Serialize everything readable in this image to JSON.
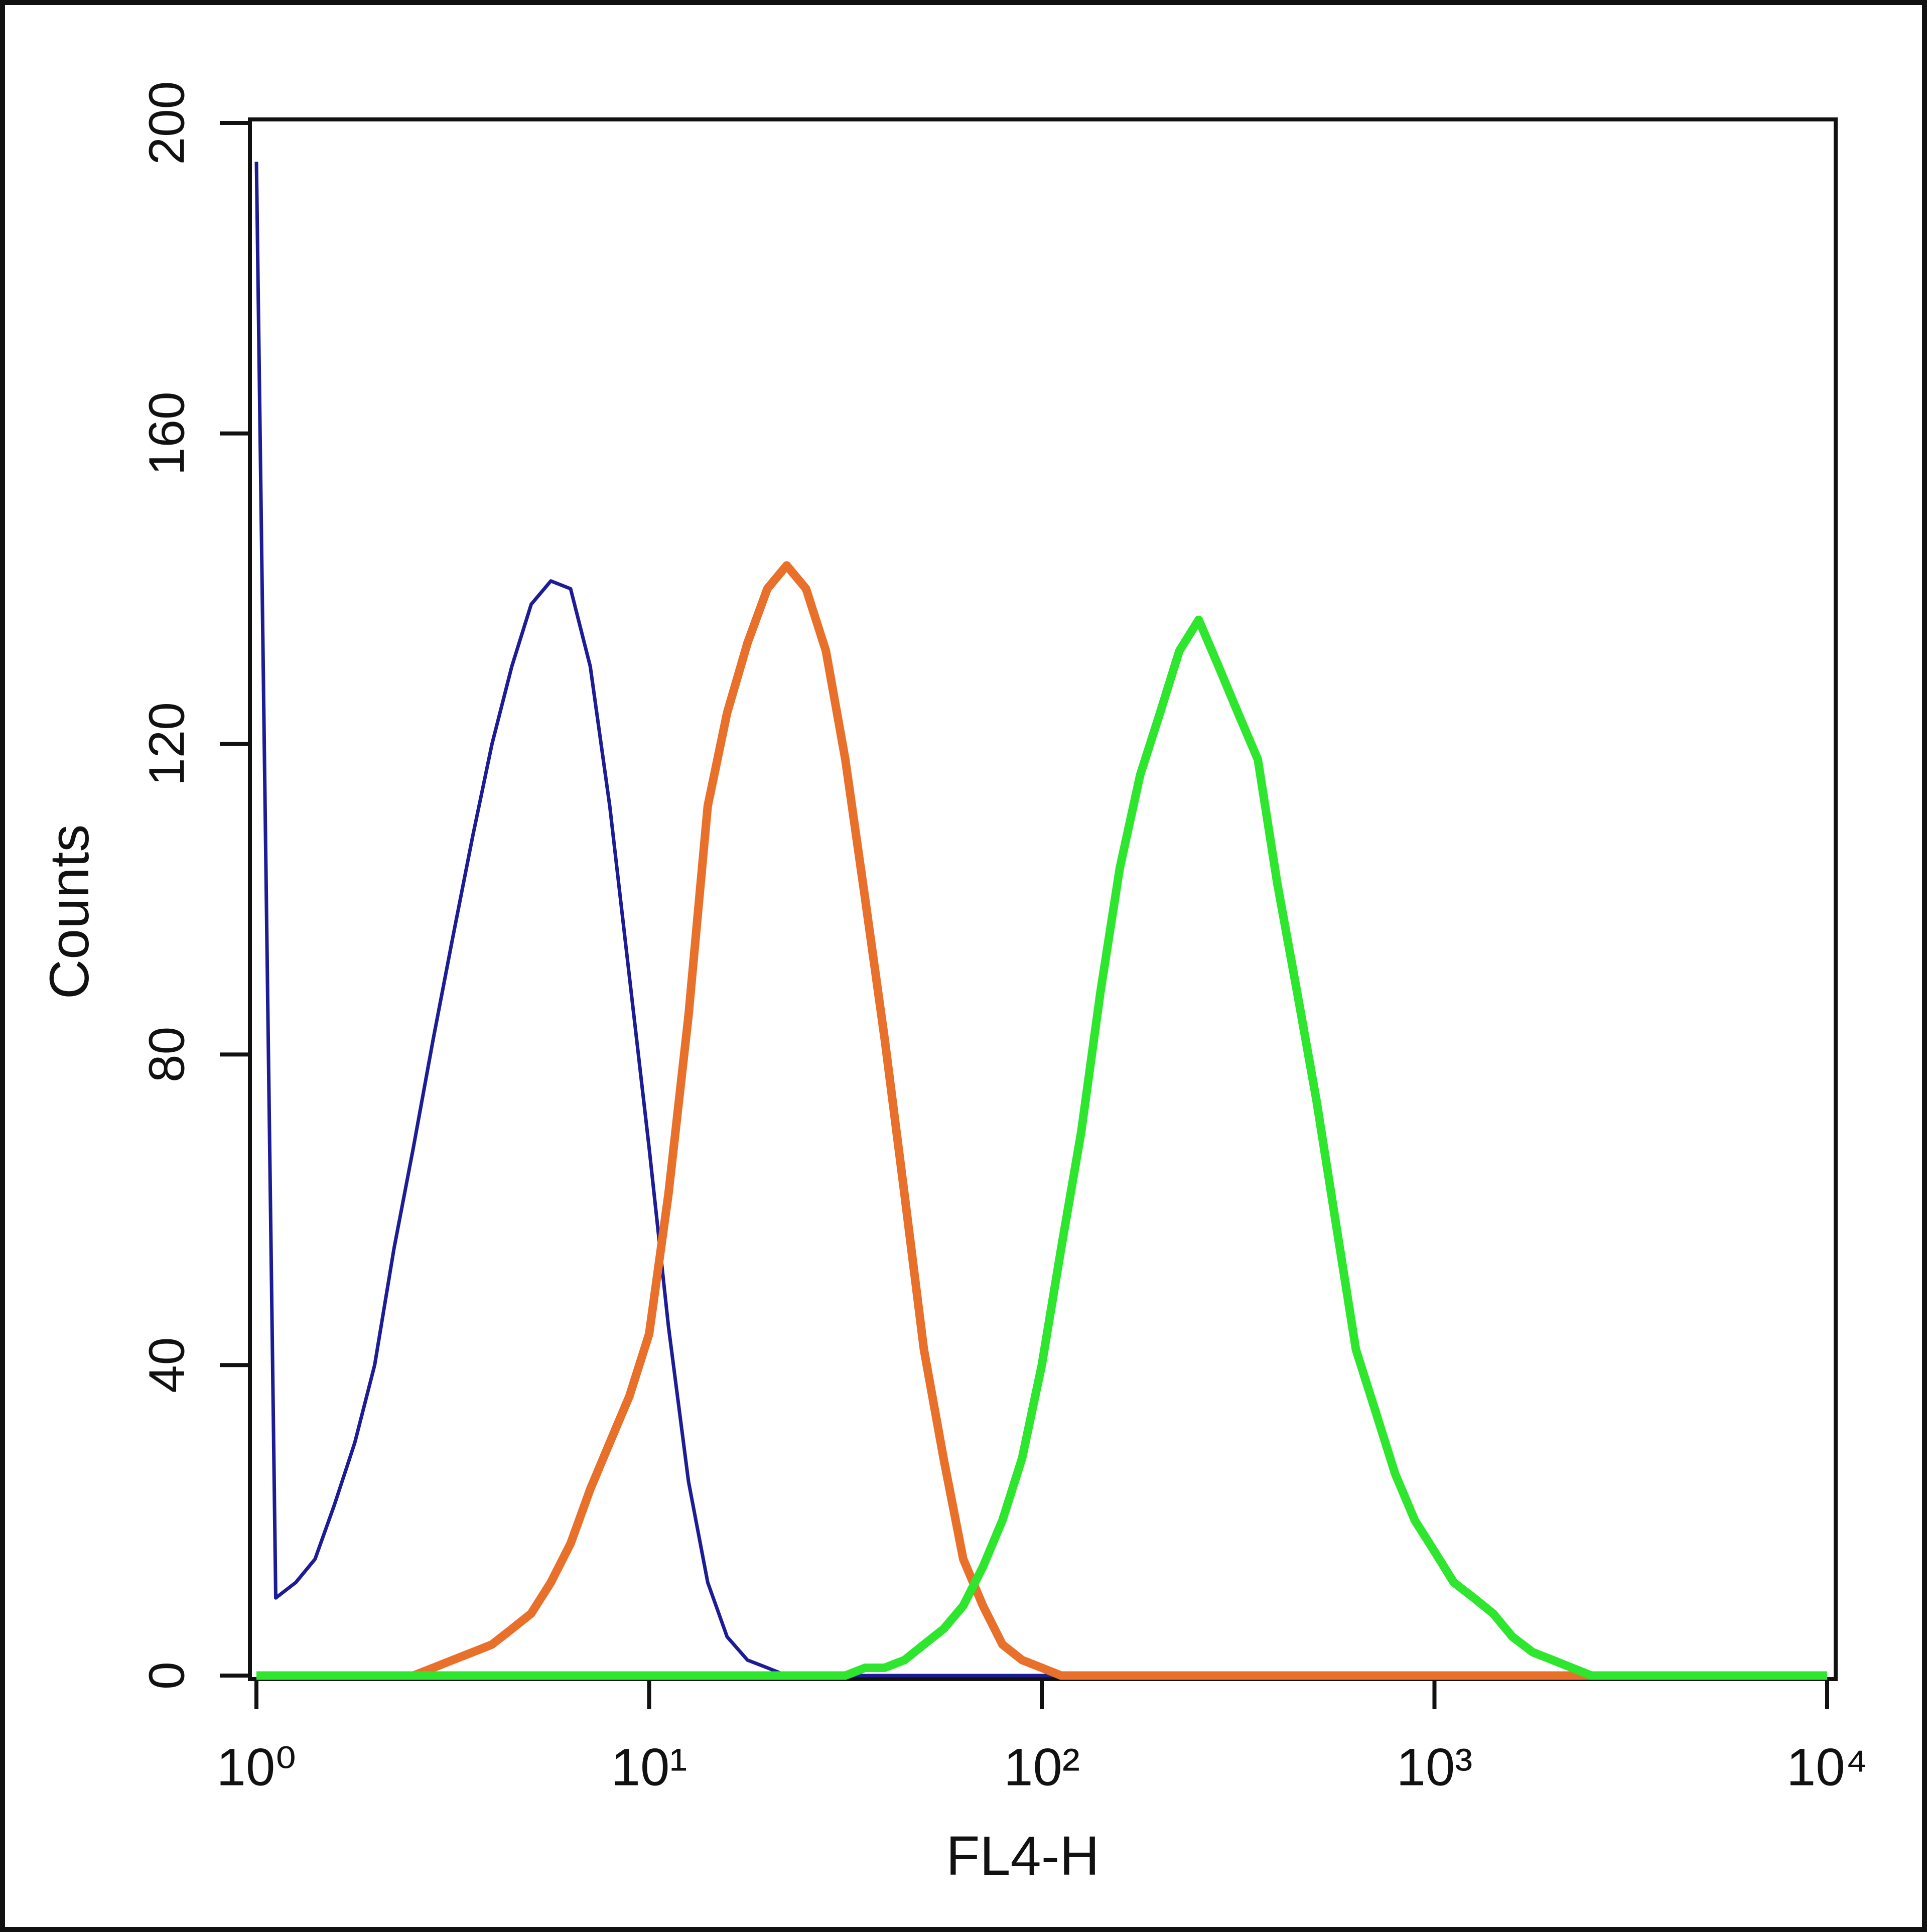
{
  "chart_data": {
    "type": "line",
    "xscale": "log",
    "x_label": "FL4-H",
    "y_label": "Counts",
    "xlim": [
      1,
      10000
    ],
    "ylim": [
      0,
      200
    ],
    "xticks": [
      {
        "value": 1,
        "label": "10⁰"
      },
      {
        "value": 10,
        "label": "10¹"
      },
      {
        "value": 100,
        "label": "10²"
      },
      {
        "value": 1000,
        "label": "10³"
      },
      {
        "value": 10000,
        "label": "10⁴"
      }
    ],
    "yticks": [
      0,
      40,
      80,
      120,
      160,
      200
    ],
    "grid": false,
    "x": [
      1,
      1.12,
      1.26,
      1.41,
      1.58,
      1.78,
      2,
      2.24,
      2.51,
      2.82,
      3.16,
      3.55,
      3.98,
      4.47,
      5.01,
      5.62,
      6.31,
      7.08,
      7.94,
      8.91,
      10,
      11.2,
      12.6,
      14.1,
      15.8,
      17.8,
      20,
      22.4,
      25.1,
      28.2,
      31.6,
      35.5,
      39.8,
      44.7,
      50.1,
      56.2,
      63.1,
      70.8,
      79.4,
      89.1,
      100,
      112,
      126,
      141,
      158,
      178,
      200,
      224,
      251,
      282,
      316,
      355,
      398,
      447,
      501,
      562,
      631,
      708,
      794,
      891,
      1000,
      1120,
      1260,
      1410,
      1580,
      1780,
      2000,
      2240,
      2510,
      2820,
      3160,
      3550,
      3980,
      4470,
      5010,
      5620,
      6310,
      7080,
      7940,
      8910,
      10000
    ],
    "series": [
      {
        "color": "#1c1c96",
        "values": [
          195,
          10,
          12,
          15,
          22,
          30,
          40,
          55,
          68,
          82,
          95,
          108,
          120,
          130,
          138,
          141,
          140,
          130,
          112,
          90,
          68,
          45,
          25,
          12,
          5,
          2,
          1,
          0,
          0,
          0,
          0,
          0,
          0,
          0,
          0,
          0,
          0,
          0,
          0,
          0,
          0,
          0,
          0,
          0,
          0,
          0,
          0,
          0,
          0,
          0,
          0,
          0,
          0,
          0,
          0,
          0,
          0,
          0,
          0,
          0,
          0,
          0,
          0,
          0,
          0,
          0,
          0,
          0,
          0,
          0,
          0,
          0,
          0,
          0,
          0,
          0,
          0,
          0,
          0,
          0,
          0
        ]
      },
      {
        "color": "#e8702a",
        "values": [
          0,
          0,
          0,
          0,
          0,
          0,
          0,
          0,
          0,
          1,
          2,
          3,
          4,
          6,
          8,
          12,
          17,
          24,
          30,
          36,
          44,
          62,
          85,
          112,
          124,
          133,
          140,
          143,
          140,
          132,
          118,
          100,
          82,
          62,
          42,
          28,
          15,
          9,
          4,
          2,
          1,
          0,
          0,
          0,
          0,
          0,
          0,
          0,
          0,
          0,
          0,
          0,
          0,
          0,
          0,
          0,
          0,
          0,
          0,
          0,
          0,
          0,
          0,
          0,
          0,
          0,
          0,
          0,
          0,
          0,
          0,
          0,
          0,
          0,
          0,
          0,
          0,
          0,
          0,
          0,
          0
        ]
      },
      {
        "color": "#2ee62e",
        "values": [
          0,
          0,
          0,
          0,
          0,
          0,
          0,
          0,
          0,
          0,
          0,
          0,
          0,
          0,
          0,
          0,
          0,
          0,
          0,
          0,
          0,
          0,
          0,
          0,
          0,
          0,
          0,
          0,
          0,
          0,
          0,
          1,
          1,
          2,
          4,
          6,
          9,
          14,
          20,
          28,
          40,
          55,
          70,
          88,
          104,
          116,
          124,
          132,
          136,
          130,
          124,
          118,
          102,
          88,
          74,
          58,
          42,
          34,
          26,
          20,
          16,
          12,
          10,
          8,
          5,
          3,
          2,
          1,
          0,
          0,
          0,
          0,
          0,
          0,
          0,
          0,
          0,
          0,
          0,
          0,
          0
        ]
      }
    ]
  }
}
